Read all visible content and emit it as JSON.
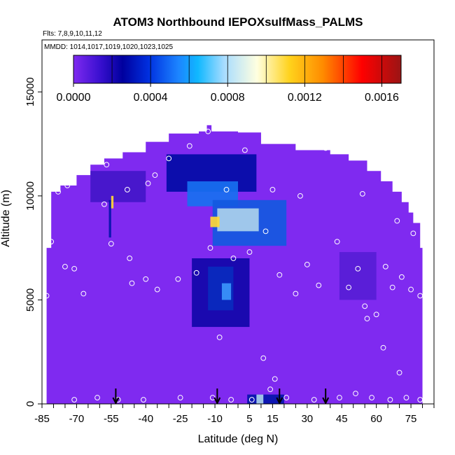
{
  "chart_data": {
    "type": "heatmap",
    "title": "ATOM3 Northbound IEPOXsulfMass_PALMS",
    "subtitle_lines": [
      "Flts: 7,8,9,10,11,12",
      "MMDD: 1014,1017,1019,1020,1023,1025"
    ],
    "xlabel": "Latitude (deg N)",
    "ylabel": "Altitude (m)",
    "xlim": [
      -85,
      85
    ],
    "ylim": [
      0,
      17500
    ],
    "x_ticks": [
      -85,
      -70,
      -55,
      -40,
      -25,
      -10,
      5,
      15,
      30,
      45,
      60,
      75
    ],
    "y_ticks": [
      0,
      5000,
      10000,
      15000
    ],
    "colorbar": {
      "range": [
        0,
        0.0017
      ],
      "ticks": [
        "0.0000",
        "0.0004",
        "0.0008",
        "0.0012",
        "0.0016"
      ],
      "tick_values": [
        0,
        0.0004,
        0.0008,
        0.0012,
        0.0016
      ],
      "colors": [
        "#7f2af0",
        "#00009e",
        "#1c84ff",
        "#ffffe0",
        "#ffd21c",
        "#ff8000",
        "#ff0000",
        "#9a1414"
      ]
    },
    "curtain_profile": [
      [
        -83,
        7500
      ],
      [
        -81,
        10200
      ],
      [
        -77,
        10500
      ],
      [
        -70,
        11000
      ],
      [
        -64,
        11500
      ],
      [
        -58,
        11800
      ],
      [
        -50,
        12100
      ],
      [
        -40,
        12600
      ],
      [
        -30,
        13000
      ],
      [
        -17,
        13100
      ],
      [
        -10,
        13100
      ],
      [
        0,
        13050
      ],
      [
        10,
        12500
      ],
      [
        25,
        12200
      ],
      [
        40,
        12000
      ],
      [
        48,
        11700
      ],
      [
        56,
        11200
      ],
      [
        62,
        10700
      ],
      [
        67,
        10200
      ],
      [
        71,
        9700
      ],
      [
        74,
        9200
      ],
      [
        76,
        8700
      ],
      [
        79,
        7500
      ],
      [
        80,
        5000
      ],
      [
        80,
        0
      ]
    ],
    "features": [
      {
        "lat_range": [
          -31,
          8
        ],
        "alt_range": [
          10200,
          12000
        ],
        "value": 0.00028
      },
      {
        "lat_range": [
          -22,
          0
        ],
        "alt_range": [
          9500,
          10700
        ],
        "value": 0.0005
      },
      {
        "lat_range": [
          -11,
          21
        ],
        "alt_range": [
          7600,
          9800
        ],
        "value": 0.00045
      },
      {
        "lat_range": [
          -9,
          9
        ],
        "alt_range": [
          8300,
          9400
        ],
        "value": 0.0008
      },
      {
        "lat_range": [
          -12,
          -8
        ],
        "alt_range": [
          8500,
          9000
        ],
        "value": 0.0011
      },
      {
        "lat_range": [
          -64,
          -40
        ],
        "alt_range": [
          9700,
          11200
        ],
        "value": 0.00012
      },
      {
        "lat_range": [
          -20,
          5
        ],
        "alt_range": [
          3700,
          7000
        ],
        "value": 0.00022
      },
      {
        "lat_range": [
          -13,
          -2
        ],
        "alt_range": [
          4500,
          6600
        ],
        "value": 0.00035
      },
      {
        "lat_range": [
          -7,
          -3
        ],
        "alt_range": [
          5000,
          5800
        ],
        "value": 0.0006
      },
      {
        "lat_range": [
          44,
          60
        ],
        "alt_range": [
          5000,
          7300
        ],
        "value": 8e-05
      },
      {
        "lat_range": [
          4,
          20
        ],
        "alt_range": [
          0,
          450
        ],
        "value": 0.0003
      },
      {
        "lat_range": [
          8,
          11
        ],
        "alt_range": [
          0,
          450
        ],
        "value": 0.0008
      },
      {
        "lat_range": [
          -56,
          -55
        ],
        "alt_range": [
          8000,
          9800
        ],
        "value": 0.0003
      },
      {
        "lat_range": [
          -55,
          -54
        ],
        "alt_range": [
          9400,
          10000
        ],
        "value": 0.0011
      }
    ],
    "sample_points": [
      [
        -78,
        10200
      ],
      [
        -74,
        10500
      ],
      [
        -66,
        11800
      ],
      [
        -57,
        11500
      ],
      [
        -48,
        10300
      ],
      [
        -39,
        10600
      ],
      [
        -36,
        11000
      ],
      [
        -30,
        11800
      ],
      [
        -21,
        12400
      ],
      [
        -13,
        13100
      ],
      [
        -5,
        10300
      ],
      [
        3,
        12200
      ],
      [
        15,
        10300
      ],
      [
        27,
        10000
      ],
      [
        38,
        12300
      ],
      [
        50,
        12000
      ],
      [
        54,
        10100
      ],
      [
        69,
        8800
      ],
      [
        76,
        8200
      ],
      [
        -81,
        7800
      ],
      [
        -75,
        6600
      ],
      [
        -71,
        6500
      ],
      [
        -67,
        5300
      ],
      [
        -55,
        7700
      ],
      [
        -47,
        7000
      ],
      [
        -40,
        6000
      ],
      [
        -35,
        5500
      ],
      [
        -26,
        6000
      ],
      [
        -18,
        6300
      ],
      [
        -12,
        7500
      ],
      [
        -2,
        7000
      ],
      [
        5,
        7300
      ],
      [
        12,
        8300
      ],
      [
        18,
        6200
      ],
      [
        25,
        5300
      ],
      [
        30,
        6700
      ],
      [
        35,
        5700
      ],
      [
        43,
        7800
      ],
      [
        48,
        5600
      ],
      [
        52,
        6500
      ],
      [
        55,
        4700
      ],
      [
        60,
        4300
      ],
      [
        64,
        6600
      ],
      [
        67,
        5600
      ],
      [
        71,
        6100
      ],
      [
        75,
        5500
      ],
      [
        79,
        5200
      ],
      [
        -83,
        5200
      ],
      [
        -71,
        200
      ],
      [
        -61,
        300
      ],
      [
        -52,
        200
      ],
      [
        -41,
        200
      ],
      [
        -25,
        300
      ],
      [
        -11,
        300
      ],
      [
        -3,
        200
      ],
      [
        6,
        200
      ],
      [
        14,
        700
      ],
      [
        21,
        300
      ],
      [
        33,
        200
      ],
      [
        44,
        300
      ],
      [
        51,
        500
      ],
      [
        58,
        300
      ],
      [
        66,
        200
      ],
      [
        73,
        300
      ],
      [
        -8,
        3200
      ],
      [
        11,
        2200
      ],
      [
        16,
        1200
      ],
      [
        56,
        4100
      ],
      [
        63,
        2700
      ],
      [
        70,
        1500
      ],
      [
        79,
        200
      ],
      [
        -46,
        5800
      ],
      [
        -58,
        9600
      ]
    ],
    "markers": [
      -53,
      -9,
      18,
      38
    ]
  }
}
